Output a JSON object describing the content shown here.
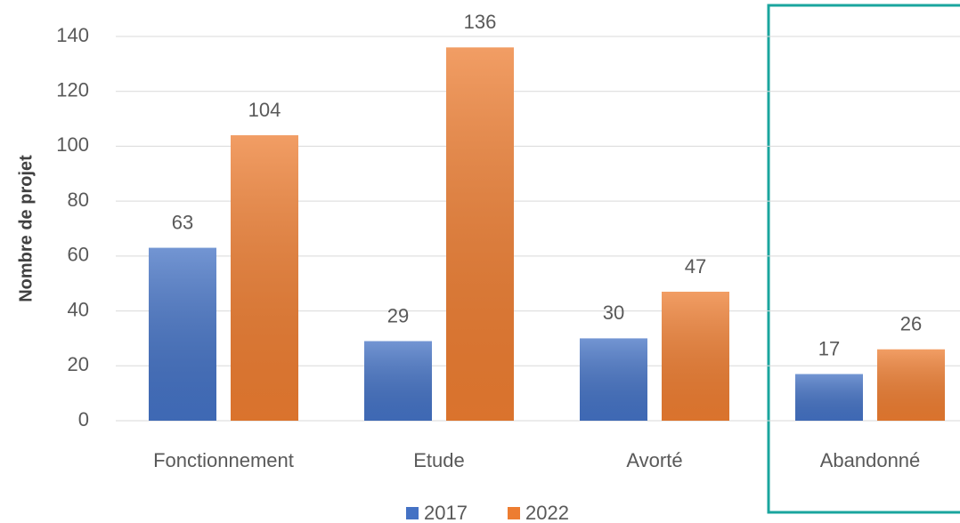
{
  "chart_data": {
    "type": "bar",
    "y_label": "Nombre de projet",
    "categories": [
      "Fonctionnement",
      "Etude",
      "Avorté",
      "Abandonné"
    ],
    "series": [
      {
        "name": "2017",
        "color": "#4472c4",
        "values": [
          63,
          29,
          30,
          17
        ]
      },
      {
        "name": "2022",
        "color": "#ed7d31",
        "values": [
          104,
          136,
          47,
          26
        ]
      }
    ],
    "ylim": [
      0,
      140
    ],
    "yticks": [
      0,
      20,
      40,
      60,
      80,
      100,
      120,
      140
    ],
    "grid": true,
    "legend": "bottom"
  }
}
